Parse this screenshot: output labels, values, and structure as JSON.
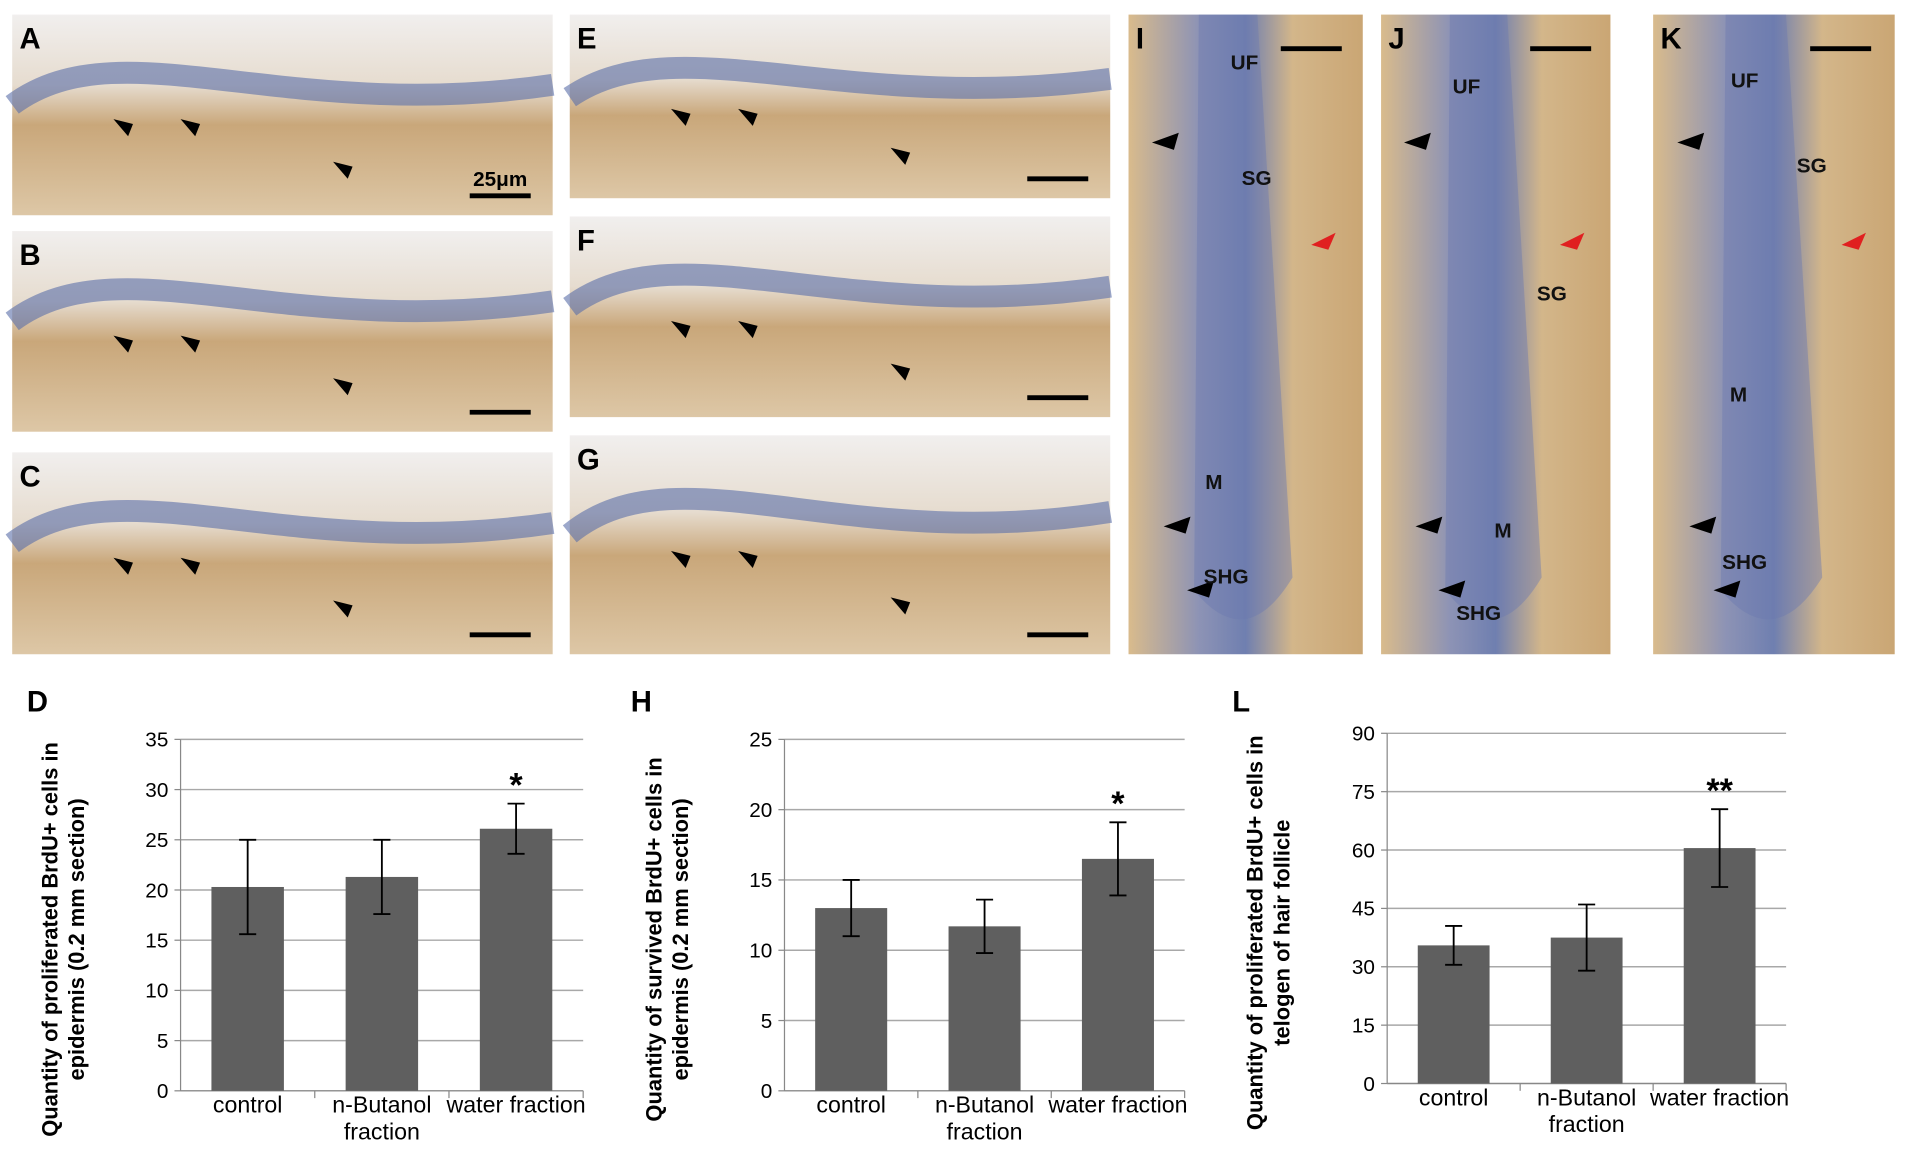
{
  "micrographs": [
    {
      "label": "A",
      "scale_bar": "25μm"
    },
    {
      "label": "B"
    },
    {
      "label": "C"
    },
    {
      "label": "E"
    },
    {
      "label": "F"
    },
    {
      "label": "G"
    },
    {
      "label": "I",
      "annotations": [
        "UF",
        "SG",
        "M",
        "SHG"
      ]
    },
    {
      "label": "J",
      "annotations": [
        "UF",
        "SG",
        "M",
        "SHG"
      ]
    },
    {
      "label": "K",
      "annotations": [
        "UF",
        "SG",
        "M",
        "SHG"
      ]
    }
  ],
  "chart_data": [
    {
      "type": "bar",
      "panel": "D",
      "y_label": "Quantity of proliferated BrdU+ cells in epidermis (0.2 mm section)",
      "categories": [
        "control",
        "n-Butanol fraction",
        "water fraction"
      ],
      "series": [
        {
          "color": "#5f5f5f",
          "values": [
            20.3,
            21.3,
            26.1
          ],
          "errors": [
            4.7,
            3.7,
            2.5
          ]
        }
      ],
      "annotation": "*",
      "ylim": [
        0,
        35
      ],
      "yticks": [
        0,
        5,
        10,
        15,
        20,
        25,
        30,
        35
      ],
      "grid": true
    },
    {
      "type": "bar",
      "panel": "H",
      "y_label": "Quantity of survived BrdU+ cells in epidermis (0.2 mm section)",
      "categories": [
        "control",
        "n-Butanol fraction",
        "water fraction"
      ],
      "series": [
        {
          "color": "#5f5f5f",
          "values": [
            13,
            11.7,
            16.5
          ],
          "errors": [
            2,
            1.9,
            2.6
          ]
        }
      ],
      "annotation": "*",
      "ylim": [
        0,
        25
      ],
      "yticks": [
        0,
        5,
        10,
        15,
        20,
        25
      ],
      "grid": true
    },
    {
      "type": "bar",
      "panel": "L",
      "y_label": "Quantity of proliferated BrdU+ cells in telogen of hair follicle",
      "categories": [
        "control",
        "n-Butanol fraction",
        "water fraction"
      ],
      "series": [
        {
          "color": "#5f5f5f",
          "values": [
            35.5,
            37.5,
            60.5
          ],
          "errors": [
            5,
            8.5,
            10
          ]
        }
      ],
      "annotation": "**",
      "ylim": [
        0,
        90
      ],
      "yticks": [
        0,
        15,
        30,
        45,
        60,
        75,
        90
      ],
      "grid": true
    }
  ]
}
